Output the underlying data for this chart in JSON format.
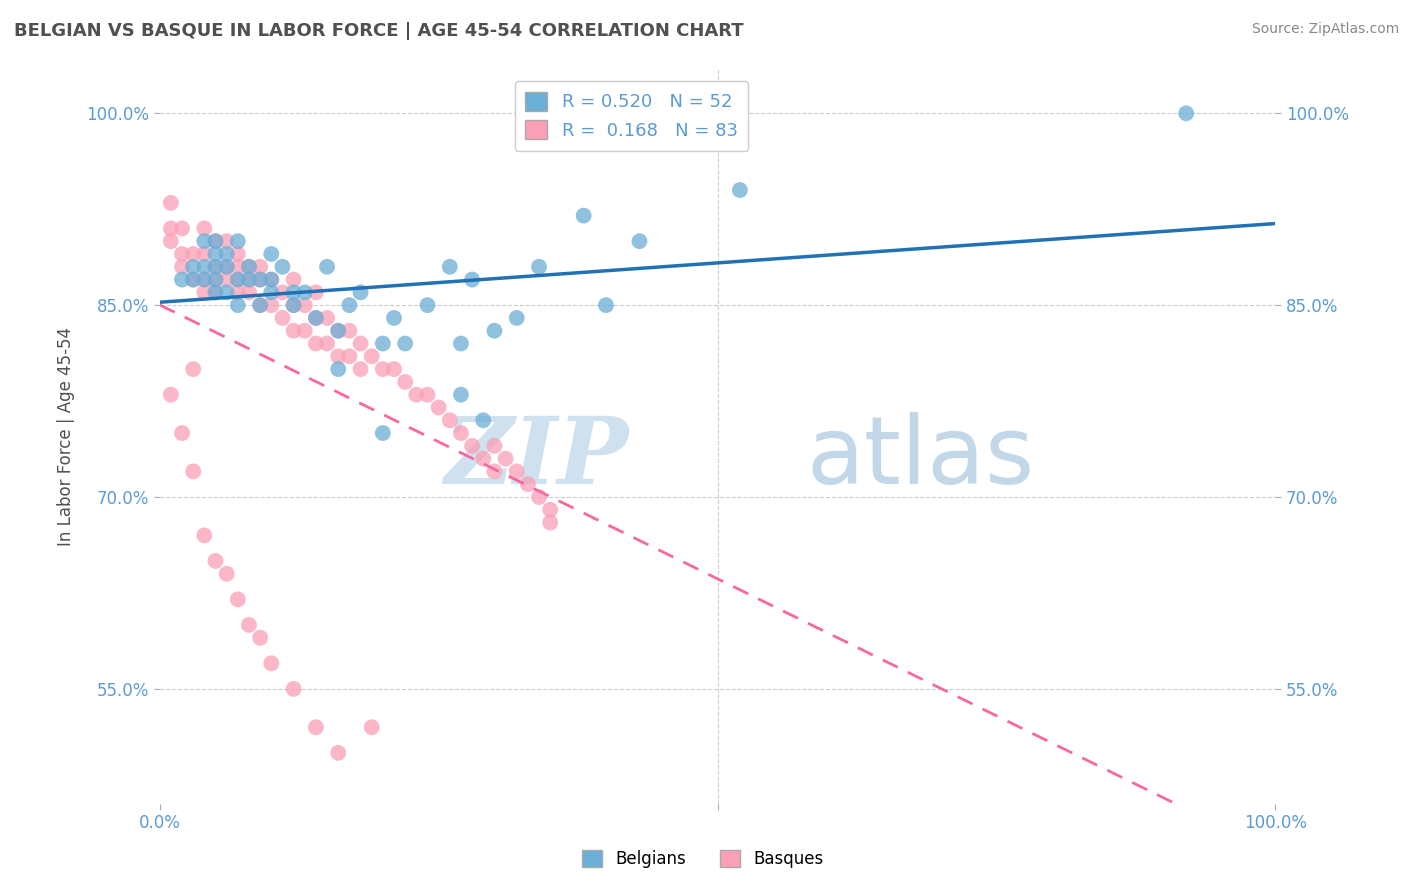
{
  "title": "BELGIAN VS BASQUE IN LABOR FORCE | AGE 45-54 CORRELATION CHART",
  "source": "Source: ZipAtlas.com",
  "ylabel": "In Labor Force | Age 45-54",
  "belgian_R": 0.52,
  "belgian_N": 52,
  "basque_R": 0.168,
  "basque_N": 83,
  "belgian_color": "#6baed6",
  "basque_color": "#fa9fb5",
  "belgian_line_color": "#2171b5",
  "basque_line_color": "#f768a1",
  "legend_label_belgian": "Belgians",
  "legend_label_basque": "Basques",
  "watermark_zip": "ZIP",
  "watermark_atlas": "atlas",
  "watermark_color": "#cfe0ef",
  "background_color": "#ffffff",
  "grid_color": "#cccccc",
  "title_color": "#505050",
  "tick_color": "#5b9bd5",
  "xlim": [
    0.0,
    1.0
  ],
  "ylim": [
    0.46,
    1.035
  ],
  "yticks": [
    0.55,
    0.7,
    0.85,
    1.0
  ],
  "ytick_labels": [
    "55.0%",
    "70.0%",
    "85.0%",
    "100.0%"
  ],
  "xticks": [
    0.0,
    0.5,
    1.0
  ],
  "xtick_labels": [
    "0.0%",
    "",
    "100.0%"
  ],
  "belgian_x": [
    0.02,
    0.03,
    0.03,
    0.04,
    0.04,
    0.04,
    0.05,
    0.05,
    0.05,
    0.05,
    0.05,
    0.06,
    0.06,
    0.06,
    0.07,
    0.07,
    0.07,
    0.08,
    0.08,
    0.09,
    0.09,
    0.1,
    0.1,
    0.1,
    0.11,
    0.12,
    0.12,
    0.13,
    0.14,
    0.15,
    0.16,
    0.16,
    0.17,
    0.18,
    0.2,
    0.2,
    0.21,
    0.22,
    0.24,
    0.26,
    0.27,
    0.27,
    0.28,
    0.29,
    0.3,
    0.32,
    0.34,
    0.38,
    0.4,
    0.43,
    0.92,
    0.52
  ],
  "belgian_y": [
    0.87,
    0.87,
    0.88,
    0.87,
    0.88,
    0.9,
    0.86,
    0.87,
    0.88,
    0.89,
    0.9,
    0.86,
    0.88,
    0.89,
    0.85,
    0.87,
    0.9,
    0.87,
    0.88,
    0.85,
    0.87,
    0.86,
    0.87,
    0.89,
    0.88,
    0.85,
    0.86,
    0.86,
    0.84,
    0.88,
    0.8,
    0.83,
    0.85,
    0.86,
    0.75,
    0.82,
    0.84,
    0.82,
    0.85,
    0.88,
    0.78,
    0.82,
    0.87,
    0.76,
    0.83,
    0.84,
    0.88,
    0.92,
    0.85,
    0.9,
    1.0,
    0.94
  ],
  "basque_x": [
    0.01,
    0.01,
    0.01,
    0.02,
    0.02,
    0.02,
    0.03,
    0.03,
    0.04,
    0.04,
    0.04,
    0.04,
    0.05,
    0.05,
    0.05,
    0.05,
    0.06,
    0.06,
    0.06,
    0.07,
    0.07,
    0.07,
    0.07,
    0.08,
    0.08,
    0.08,
    0.09,
    0.09,
    0.09,
    0.1,
    0.1,
    0.11,
    0.11,
    0.12,
    0.12,
    0.12,
    0.13,
    0.13,
    0.14,
    0.14,
    0.14,
    0.15,
    0.15,
    0.16,
    0.16,
    0.17,
    0.17,
    0.18,
    0.18,
    0.19,
    0.2,
    0.21,
    0.22,
    0.23,
    0.24,
    0.25,
    0.26,
    0.27,
    0.28,
    0.29,
    0.3,
    0.3,
    0.31,
    0.32,
    0.33,
    0.34,
    0.35,
    0.01,
    0.02,
    0.03,
    0.03,
    0.04,
    0.05,
    0.06,
    0.07,
    0.08,
    0.09,
    0.1,
    0.12,
    0.14,
    0.16,
    0.19,
    0.35
  ],
  "basque_y": [
    0.9,
    0.91,
    0.93,
    0.88,
    0.89,
    0.91,
    0.87,
    0.89,
    0.86,
    0.87,
    0.89,
    0.91,
    0.86,
    0.87,
    0.88,
    0.9,
    0.87,
    0.88,
    0.9,
    0.86,
    0.87,
    0.88,
    0.89,
    0.86,
    0.87,
    0.88,
    0.85,
    0.87,
    0.88,
    0.85,
    0.87,
    0.84,
    0.86,
    0.83,
    0.85,
    0.87,
    0.83,
    0.85,
    0.82,
    0.84,
    0.86,
    0.82,
    0.84,
    0.81,
    0.83,
    0.81,
    0.83,
    0.8,
    0.82,
    0.81,
    0.8,
    0.8,
    0.79,
    0.78,
    0.78,
    0.77,
    0.76,
    0.75,
    0.74,
    0.73,
    0.72,
    0.74,
    0.73,
    0.72,
    0.71,
    0.7,
    0.69,
    0.78,
    0.75,
    0.72,
    0.8,
    0.67,
    0.65,
    0.64,
    0.62,
    0.6,
    0.59,
    0.57,
    0.55,
    0.52,
    0.5,
    0.52,
    0.68
  ]
}
